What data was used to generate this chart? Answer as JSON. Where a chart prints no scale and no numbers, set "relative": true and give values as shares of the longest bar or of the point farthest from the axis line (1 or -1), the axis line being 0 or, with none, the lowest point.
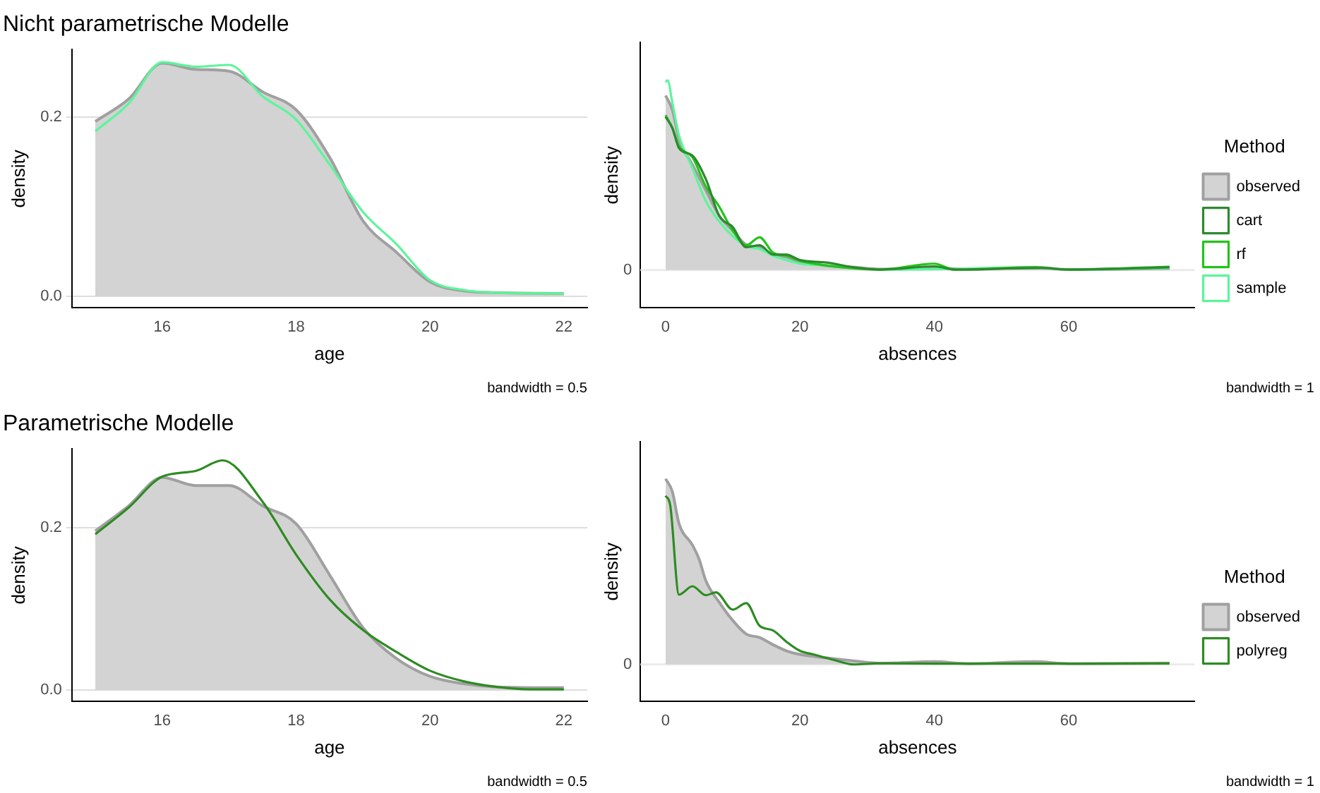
{
  "chart_data": [
    {
      "type": "line",
      "title": "Nicht parametrische Modelle",
      "xlabel": "age",
      "ylabel": "density",
      "annotations": [
        "bandwidth = 0.5"
      ],
      "xlim": [
        14.65,
        22.35
      ],
      "xticks": [
        16,
        18,
        20,
        22
      ],
      "ylim": [
        -0.013,
        0.275
      ],
      "yticks": [
        {
          "value": 0,
          "label": "0.0"
        },
        0.2
      ],
      "grid": "y",
      "series": [
        {
          "type": "area",
          "color": "#d3d3d3",
          "x": [
            15,
            15.5,
            16,
            16.5,
            17,
            17.5,
            18,
            18.5,
            19,
            19.5,
            20,
            20.5,
            21,
            22
          ],
          "values": [
            0.195,
            0.22,
            0.26,
            0.253,
            0.251,
            0.228,
            0.208,
            0.155,
            0.084,
            0.049,
            0.016,
            0.006,
            0.004,
            0.003
          ]
        },
        {
          "type": "line",
          "color": "#5cf59a",
          "x": [
            15,
            15.5,
            16,
            16.5,
            17,
            17.5,
            18,
            18.5,
            19,
            19.5,
            20,
            20.5,
            21,
            22
          ],
          "values": [
            0.184,
            0.215,
            0.261,
            0.256,
            0.258,
            0.223,
            0.197,
            0.147,
            0.094,
            0.058,
            0.018,
            0.007,
            0.004,
            0.003
          ]
        }
      ]
    },
    {
      "type": "line",
      "xlabel": "absences",
      "ylabel": "density",
      "annotations": [
        "bandwidth = 1"
      ],
      "relative": true,
      "xlim": [
        -3.75,
        78.75
      ],
      "xticks": [
        0,
        20,
        40,
        60
      ],
      "ref_lines": [
        {
          "axis": "y",
          "value": 0,
          "label": "0",
          "color": "#ebebeb"
        }
      ],
      "legend": "right",
      "legend_title": "Method",
      "series": [
        {
          "name": "observed",
          "type": "area",
          "color": "#d3d3d3",
          "x": [
            0,
            1,
            2,
            4,
            6,
            8,
            10,
            12,
            14,
            16,
            18,
            20,
            22,
            25,
            28,
            32,
            40,
            45,
            55,
            60,
            75
          ],
          "values": [
            0.92,
            0.845,
            0.69,
            0.555,
            0.42,
            0.285,
            0.207,
            0.133,
            0.12,
            0.081,
            0.068,
            0.043,
            0.033,
            0.019,
            0.014,
            0.004,
            0.012,
            0.002,
            0.014,
            0.002,
            0.008
          ]
        },
        {
          "name": "cart",
          "type": "line",
          "color": "#2c8a2c",
          "x": [
            0,
            1,
            2,
            4,
            6,
            8,
            10,
            12,
            14,
            16,
            18,
            20,
            24,
            28,
            32,
            40,
            43,
            56,
            60,
            75
          ],
          "values": [
            0.807,
            0.749,
            0.642,
            0.603,
            0.478,
            0.284,
            0.226,
            0.12,
            0.13,
            0.081,
            0.081,
            0.052,
            0.039,
            0.014,
            0.002,
            0.019,
            0.002,
            0.01,
            0.002,
            0.014
          ]
        },
        {
          "name": "rf",
          "type": "line",
          "color": "#22c41a",
          "x": [
            0,
            1,
            2,
            4,
            6,
            8,
            10,
            12,
            14,
            16,
            18,
            20,
            24,
            28,
            32,
            40,
            43,
            55,
            60,
            75
          ],
          "values": [
            0.816,
            0.749,
            0.652,
            0.594,
            0.439,
            0.333,
            0.207,
            0.13,
            0.172,
            0.091,
            0.075,
            0.048,
            0.023,
            0.008,
            0.002,
            0.033,
            0.002,
            0.014,
            0.002,
            0.017
          ]
        },
        {
          "name": "sample",
          "type": "line",
          "color": "#5cf59a",
          "x": [
            0,
            0.3,
            1,
            2,
            4,
            6,
            8,
            10,
            12,
            14,
            16,
            18,
            20,
            24,
            28,
            32,
            40,
            55,
            60,
            75
          ],
          "values": [
            0.99,
            1,
            0.884,
            0.71,
            0.536,
            0.362,
            0.255,
            0.178,
            0.126,
            0.11,
            0.075,
            0.052,
            0.033,
            0.023,
            0.01,
            0.002,
            0.004,
            0.014,
            0.002,
            0.01
          ]
        }
      ]
    },
    {
      "type": "line",
      "title": "Parametrische Modelle",
      "xlabel": "age",
      "ylabel": "density",
      "annotations": [
        "bandwidth = 0.5"
      ],
      "xlim": [
        14.65,
        22.35
      ],
      "xticks": [
        16,
        18,
        20,
        22
      ],
      "ylim": [
        -0.014,
        0.297
      ],
      "yticks": [
        {
          "value": 0,
          "label": "0.0"
        },
        0.2
      ],
      "grid": "y",
      "series": [
        {
          "type": "area",
          "color": "#d3d3d3",
          "x": [
            15,
            15.5,
            16,
            16.5,
            17,
            17.5,
            18,
            18.5,
            19,
            19.5,
            20,
            20.5,
            21,
            22
          ],
          "values": [
            0.196,
            0.227,
            0.262,
            0.252,
            0.252,
            0.227,
            0.205,
            0.142,
            0.077,
            0.039,
            0.017,
            0.008,
            0.004,
            0.003
          ]
        },
        {
          "type": "line",
          "color": "#2e8b22",
          "x": [
            15,
            15.5,
            16,
            16.5,
            16.9,
            17.5,
            18,
            18.5,
            19,
            19.5,
            20,
            20.5,
            21,
            21.5,
            22
          ],
          "values": [
            0.192,
            0.225,
            0.263,
            0.27,
            0.283,
            0.232,
            0.167,
            0.112,
            0.074,
            0.047,
            0.024,
            0.011,
            0.004,
            0.001,
            0.001
          ]
        }
      ]
    },
    {
      "type": "line",
      "xlabel": "absences",
      "ylabel": "density",
      "annotations": [
        "bandwidth = 1"
      ],
      "relative": true,
      "xlim": [
        -3.75,
        78.75
      ],
      "xticks": [
        0,
        20,
        40,
        60
      ],
      "ref_lines": [
        {
          "axis": "y",
          "value": 0,
          "label": "0",
          "color": "#ebebeb"
        }
      ],
      "legend": "right",
      "legend_title": "Method",
      "series": [
        {
          "name": "observed",
          "type": "area",
          "color": "#d3d3d3",
          "x": [
            0,
            1,
            2,
            4,
            5,
            6,
            8,
            10,
            12,
            14,
            16,
            18,
            20,
            24,
            28,
            32,
            40,
            45,
            55,
            60,
            75
          ],
          "values": [
            1,
            0.932,
            0.759,
            0.643,
            0.566,
            0.45,
            0.334,
            0.237,
            0.164,
            0.145,
            0.106,
            0.073,
            0.054,
            0.035,
            0.019,
            0.006,
            0.015,
            0.004,
            0.015,
            0.004,
            0.006
          ]
        },
        {
          "name": "polyreg",
          "type": "line",
          "color": "#2e8b22",
          "x": [
            0,
            0.7,
            2,
            4,
            6,
            7.5,
            10,
            12,
            14,
            16,
            18,
            20,
            22,
            25,
            28,
            32,
            40,
            55,
            75
          ],
          "values": [
            0.909,
            0.855,
            0.376,
            0.421,
            0.373,
            0.388,
            0.295,
            0.33,
            0.208,
            0.183,
            0.122,
            0.073,
            0.054,
            0.025,
            0,
            0.006,
            0.004,
            0.004,
            0.006
          ]
        }
      ]
    }
  ]
}
